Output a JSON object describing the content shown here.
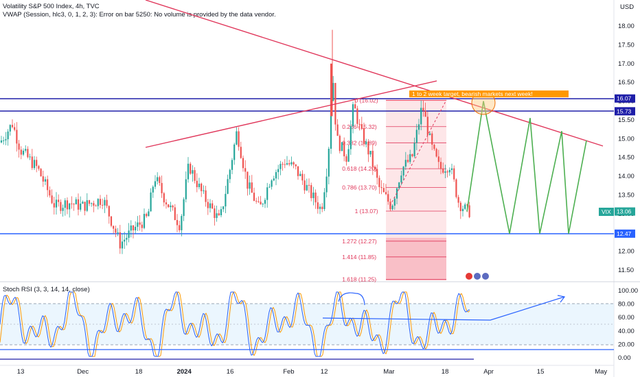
{
  "header": {
    "title": "Volatility S&P 500 Index, 4h, TVC",
    "indicator": "VWAP (Session, hlc3, 0, 1, 2, 3): Error on bar 5250: No volume is provided by the data vendor."
  },
  "currency": "USD",
  "price_axis": {
    "ticks": [
      "18.00",
      "17.50",
      "17.00",
      "16.50",
      "16.00",
      "15.50",
      "15.00",
      "14.50",
      "14.00",
      "13.50",
      "13.00",
      "12.50",
      "12.00",
      "11.50"
    ],
    "tags": [
      {
        "label": "16.07",
        "color": "#1e1ea8"
      },
      {
        "label": "15.73",
        "color": "#1e1ea8"
      },
      {
        "label": "13.06",
        "color": "#26a69a"
      },
      {
        "label": "12.47",
        "color": "#2962ff"
      }
    ],
    "symbol_tag": "VIX"
  },
  "time_axis": [
    "13",
    "Dec",
    "18",
    "2024",
    "16",
    "Feb",
    "12",
    "Mar",
    "18",
    "Apr",
    "15",
    "May"
  ],
  "fib_levels": [
    {
      "label": "0 (16.02)"
    },
    {
      "label": "0.236 (15.32)"
    },
    {
      "label": "0.382 (14.89)"
    },
    {
      "label": "0.618 (14.20)"
    },
    {
      "label": "0.786 (13.70)"
    },
    {
      "label": "1 (13.07)"
    },
    {
      "label": "1.272 (12.27)"
    },
    {
      "label": "1.414 (11.85)"
    },
    {
      "label": "1.618 (11.25)"
    }
  ],
  "annotation": "1 to 2 week target, bearish markets next week!",
  "rsi": {
    "title": "Stoch RSI (3, 3, 14, 14, close)",
    "ticks": [
      "100.00",
      "80.00",
      "60.00",
      "40.00",
      "20.00",
      "0.00"
    ]
  },
  "colors": {
    "up": "#26a69a",
    "down": "#ef5350",
    "trendline": "#e0365a",
    "resistance": "#1e1ea8",
    "support": "#2962ff",
    "projection": "#4caf50",
    "target_box": "#ff9800",
    "rsi_k": "#2962ff",
    "rsi_d": "#ff9800"
  },
  "chart_data": {
    "type": "candlestick",
    "title": "Volatility S&P 500 Index, 4h, TVC",
    "ylim": [
      11.25,
      18.3
    ],
    "horizontal_levels": [
      16.07,
      15.73,
      12.47
    ],
    "last_price": 13.06,
    "key_closes": [
      {
        "x": "Nov 13",
        "value": 14.7
      },
      {
        "x": "Dec",
        "value": 13.2
      },
      {
        "x": "Dec 18",
        "value": 12.3
      },
      {
        "x": "2024",
        "value": 13.5
      },
      {
        "x": "Jan 16",
        "value": 14.6
      },
      {
        "x": "Feb",
        "value": 13.9
      },
      {
        "x": "Feb 12",
        "value": 16.9
      },
      {
        "x": "Mar",
        "value": 13.7
      },
      {
        "x": "Mar 18",
        "value": 14.4
      },
      {
        "x": "Apr",
        "value": 13.06
      }
    ],
    "projection_path": [
      13.06,
      16.0,
      12.47,
      15.55,
      12.47,
      15.2,
      12.47,
      14.95
    ],
    "stoch_rsi_range": [
      0,
      100
    ]
  }
}
